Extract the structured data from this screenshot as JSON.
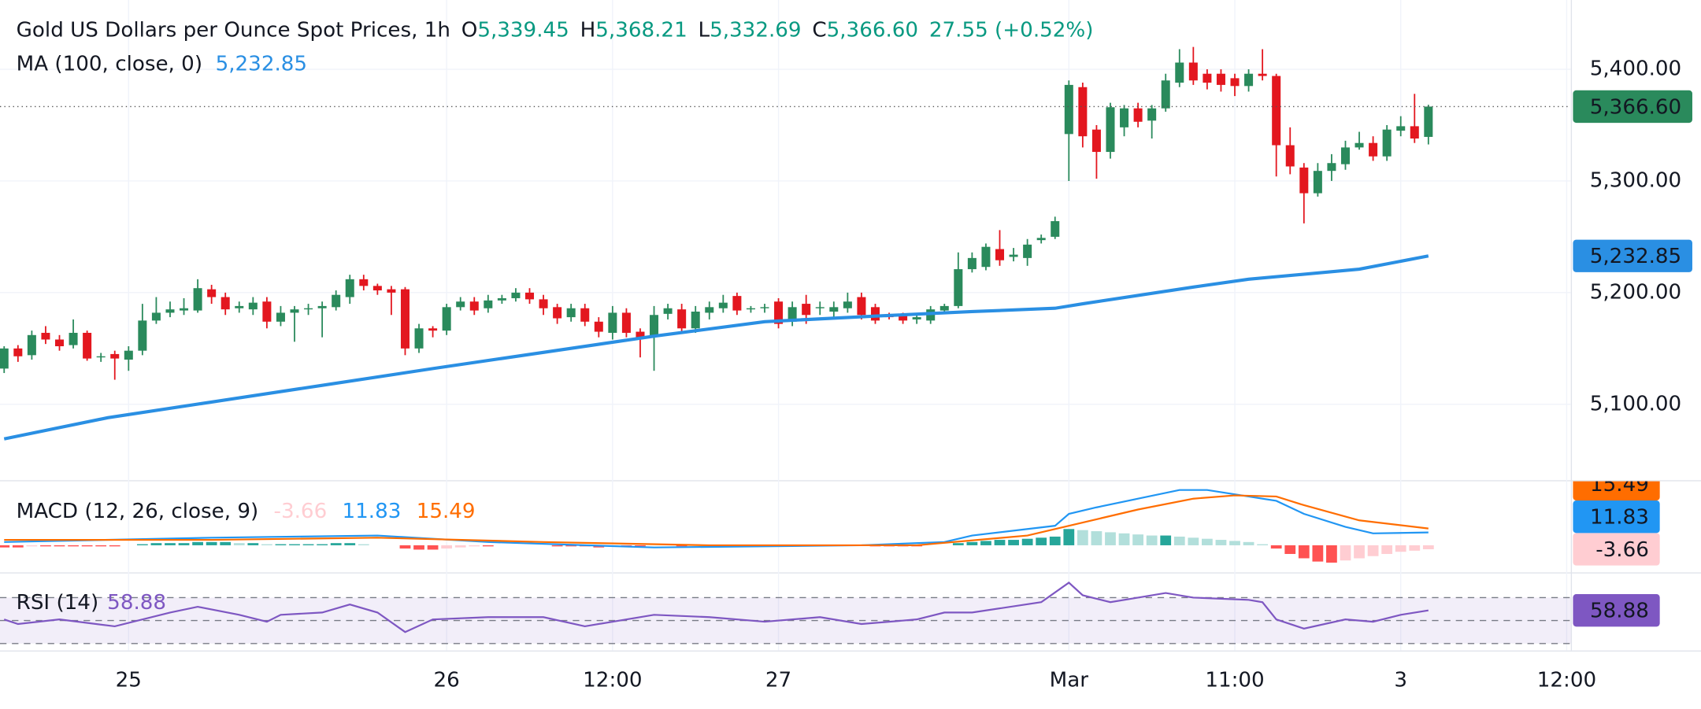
{
  "chart_data": [
    {
      "type": "candlestick",
      "title": "Gold US Dollars per Ounce Spot Prices, 1h",
      "ohlc_legend": [
        {
          "key": "O",
          "value": "5,339.45"
        },
        {
          "key": "H",
          "value": "5,368.21"
        },
        {
          "key": "L",
          "value": "5,332.69"
        },
        {
          "key": "C",
          "value": "5,366.60"
        }
      ],
      "change": "27.55 (+0.52%)",
      "legend_color": "#089981",
      "ylim": [
        5032,
        5462
      ],
      "yticks": [
        {
          "value": 5400,
          "label": "5,400.00"
        },
        {
          "value": 5300,
          "label": "5,300.00"
        },
        {
          "value": 5200,
          "label": "5,200.00"
        },
        {
          "value": 5100,
          "label": "5,100.00"
        }
      ],
      "xlim": [
        -0.3,
        113.3
      ],
      "xticks": [
        {
          "value": 9,
          "label": "25"
        },
        {
          "value": 32,
          "label": "26"
        },
        {
          "value": 44,
          "label": "12:00"
        },
        {
          "value": 56,
          "label": "27"
        },
        {
          "value": 77,
          "label": "Mar"
        },
        {
          "value": 89,
          "label": "11:00"
        },
        {
          "value": 101,
          "label": "3"
        },
        {
          "value": 113,
          "label": "12:00"
        }
      ],
      "grid": true,
      "candles": {
        "color_up": "#2a8a5c",
        "color_down": "#e3171f",
        "last_label": "5,366.60",
        "open": [
          5132,
          5150,
          5144,
          5164,
          5158,
          5153,
          5164,
          5142,
          5145,
          5140,
          5148,
          5175,
          5182,
          5184,
          5184,
          5203,
          5196,
          5186,
          5185,
          5192,
          5174,
          5182,
          5185,
          5186,
          5187,
          5196,
          5212,
          5206,
          5203,
          5203,
          5150,
          5168,
          5166,
          5187,
          5192,
          5186,
          5193,
          5195,
          5200,
          5194,
          5187,
          5178,
          5186,
          5174,
          5164,
          5182,
          5165,
          5161,
          5181,
          5185,
          5168,
          5182,
          5186,
          5197,
          5185,
          5186,
          5192,
          5174,
          5190,
          5186,
          5183,
          5186,
          5196,
          5187,
          5179,
          5180,
          5176,
          5175,
          5184,
          5188,
          5221,
          5223,
          5239,
          5232,
          5231,
          5247,
          5250,
          5342,
          5384,
          5346,
          5326,
          5348,
          5365,
          5354,
          5365,
          5388,
          5406,
          5396,
          5396,
          5392,
          5385,
          5396,
          5394,
          5332,
          5312,
          5289,
          5309,
          5315,
          5330,
          5334,
          5322,
          5345,
          5349,
          5339.45
        ],
        "high": [
          5152,
          5153,
          5166,
          5170,
          5162,
          5176,
          5166,
          5146,
          5148,
          5152,
          5190,
          5196,
          5192,
          5195,
          5212,
          5207,
          5200,
          5192,
          5196,
          5196,
          5188,
          5188,
          5190,
          5192,
          5202,
          5216,
          5216,
          5208,
          5206,
          5205,
          5172,
          5170,
          5190,
          5196,
          5196,
          5198,
          5198,
          5204,
          5204,
          5198,
          5190,
          5190,
          5190,
          5178,
          5188,
          5186,
          5168,
          5188,
          5190,
          5190,
          5188,
          5192,
          5198,
          5200,
          5188,
          5190,
          5195,
          5192,
          5198,
          5192,
          5192,
          5200,
          5200,
          5190,
          5182,
          5182,
          5180,
          5188,
          5190,
          5236,
          5236,
          5244,
          5256,
          5240,
          5248,
          5252,
          5268,
          5390,
          5388,
          5350,
          5370,
          5368,
          5370,
          5368,
          5396,
          5418,
          5420,
          5400,
          5400,
          5396,
          5400,
          5418,
          5396,
          5348,
          5316,
          5316,
          5324,
          5336,
          5344,
          5340,
          5350,
          5358,
          5378,
          5368.21
        ],
        "low": [
          5128,
          5138,
          5140,
          5154,
          5148,
          5150,
          5139,
          5138,
          5122,
          5130,
          5144,
          5172,
          5178,
          5180,
          5182,
          5190,
          5180,
          5182,
          5180,
          5168,
          5170,
          5156,
          5180,
          5160,
          5184,
          5190,
          5202,
          5198,
          5180,
          5144,
          5146,
          5160,
          5162,
          5184,
          5180,
          5182,
          5190,
          5192,
          5190,
          5180,
          5172,
          5174,
          5170,
          5160,
          5158,
          5160,
          5142,
          5130,
          5176,
          5164,
          5164,
          5176,
          5182,
          5180,
          5182,
          5182,
          5168,
          5170,
          5172,
          5180,
          5178,
          5182,
          5176,
          5172,
          5176,
          5172,
          5172,
          5172,
          5182,
          5186,
          5218,
          5220,
          5224,
          5228,
          5224,
          5244,
          5248,
          5300,
          5330,
          5302,
          5320,
          5340,
          5348,
          5338,
          5362,
          5384,
          5386,
          5382,
          5380,
          5376,
          5380,
          5390,
          5304,
          5306,
          5262,
          5286,
          5300,
          5310,
          5328,
          5318,
          5318,
          5340,
          5334,
          5332.69
        ],
        "close": [
          5150,
          5143,
          5162,
          5158,
          5152,
          5164,
          5141,
          5143,
          5141,
          5148,
          5175,
          5182,
          5185,
          5186,
          5204,
          5196,
          5185,
          5188,
          5191,
          5174,
          5182,
          5185,
          5186,
          5188,
          5198,
          5212,
          5206,
          5202,
          5200,
          5150,
          5168,
          5166,
          5187,
          5192,
          5184,
          5193,
          5195,
          5200,
          5194,
          5186,
          5177,
          5186,
          5174,
          5165,
          5182,
          5164,
          5160,
          5180,
          5186,
          5168,
          5183,
          5187,
          5191,
          5184,
          5186,
          5187,
          5172,
          5187,
          5180,
          5187,
          5187,
          5192,
          5180,
          5175,
          5178,
          5175,
          5178,
          5185,
          5188,
          5221,
          5231,
          5241,
          5229,
          5234,
          5243,
          5249,
          5264,
          5386,
          5340,
          5326,
          5366,
          5365,
          5353,
          5365,
          5390,
          5406,
          5390,
          5388,
          5386,
          5385,
          5396,
          5394,
          5332,
          5313,
          5289,
          5309,
          5316,
          5330,
          5334,
          5322,
          5346,
          5349,
          5338,
          5366.6
        ]
      },
      "ma": {
        "name": "MA (100, close, 0)",
        "color": "#2a8fe3",
        "last_label": "5,232.85",
        "x": [
          0,
          7.5,
          23,
          31,
          47,
          55,
          63,
          70,
          76,
          78,
          86,
          90,
          98,
          103
        ],
        "values": [
          5069,
          5088,
          5117,
          5132,
          5161,
          5174,
          5179,
          5183,
          5186,
          5190,
          5205,
          5212,
          5221,
          5232.85
        ]
      }
    },
    {
      "type": "macd",
      "name": "MACD (12, 26, close, 9)",
      "ylim": [
        -24,
        59
      ],
      "histogram": {
        "color_up_strong": "#26a69a",
        "color_up_weak": "#b2dfdb",
        "color_down_strong": "#ff5252",
        "color_down_weak": "#ffcdd2",
        "values": [
          -2,
          -2,
          -1,
          -1,
          -1,
          -1,
          -1,
          -1,
          -1,
          0,
          1,
          2,
          2,
          2,
          3,
          3,
          3,
          2,
          2,
          1,
          1,
          1,
          1,
          1,
          2,
          2,
          1,
          0,
          0,
          -3,
          -4,
          -4,
          -3,
          -2,
          -1,
          -1,
          0,
          0,
          0,
          0,
          -1,
          -1,
          -1,
          -2,
          -1,
          -1,
          -1,
          0,
          0,
          -1,
          0,
          0,
          0,
          0,
          0,
          0,
          -1,
          0,
          0,
          0,
          0,
          0,
          0,
          -1,
          -1,
          -1,
          -1,
          0,
          0,
          2,
          3,
          4,
          5,
          5,
          6,
          7,
          8,
          15,
          14,
          13,
          12,
          11,
          10,
          9,
          9,
          8,
          7,
          6,
          5,
          4,
          3,
          1,
          -3,
          -8,
          -12,
          -15,
          -16,
          -14,
          -12,
          -10,
          -8,
          -6,
          -5,
          -3.66
        ]
      },
      "macd": {
        "color": "#2196f3",
        "x": [
          0,
          15,
          27,
          35,
          47,
          62,
          68,
          70,
          76,
          77,
          79,
          82,
          85,
          87,
          90,
          92,
          94,
          97,
          99,
          103
        ],
        "values": [
          3,
          7,
          9,
          3,
          -2,
          0,
          3,
          9,
          18,
          29,
          35,
          43,
          51,
          51,
          45,
          41,
          29,
          17,
          11,
          11.83
        ]
      },
      "signal": {
        "color": "#ff6d00",
        "x": [
          0,
          15,
          27,
          39,
          51,
          66,
          74,
          78,
          82,
          86,
          89,
          92,
          94,
          98,
          103
        ],
        "values": [
          5,
          5,
          7,
          3,
          0,
          0,
          9,
          21,
          33,
          43,
          46,
          45,
          37,
          23,
          15.49
        ]
      }
    },
    {
      "type": "rsi",
      "name": "RSI (14)",
      "color": "#7e57c2",
      "ylim": [
        24,
        91
      ],
      "levels": [
        70,
        50,
        30
      ],
      "x": [
        0,
        1,
        4,
        8,
        12,
        14,
        17,
        19,
        20,
        23,
        25,
        27,
        29,
        31,
        35,
        39,
        42,
        47,
        51,
        55,
        59,
        62,
        66,
        68,
        70,
        75,
        77,
        78,
        80,
        82,
        84,
        86,
        90,
        91,
        92,
        94,
        97,
        99,
        101,
        103
      ],
      "values": [
        51,
        47,
        51,
        45,
        57,
        62,
        55,
        49,
        55,
        57,
        64,
        57,
        40,
        51,
        53,
        53,
        45,
        55,
        53,
        49,
        53,
        47,
        51,
        57,
        57,
        66,
        83,
        72,
        66,
        70,
        74,
        70,
        68,
        66,
        51,
        43,
        51,
        49,
        55,
        58.88
      ]
    }
  ]
}
